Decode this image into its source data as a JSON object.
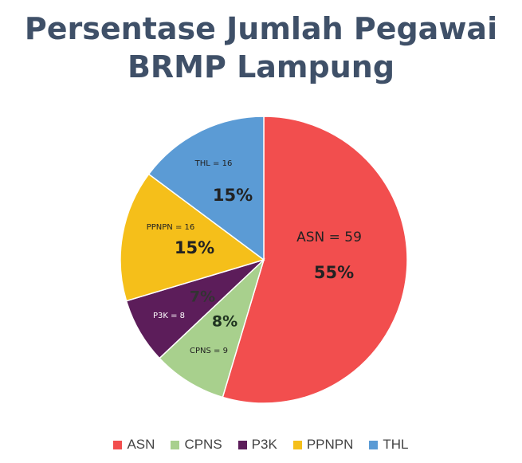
{
  "chart_data": {
    "type": "pie",
    "title": [
      "Persentase Jumlah Pegawai",
      "BRMP Lampung"
    ],
    "slices": [
      {
        "name": "ASN",
        "value": 59,
        "label": "ASN = 59",
        "percent": "55%",
        "color": "#f24e4e"
      },
      {
        "name": "CPNS",
        "value": 9,
        "label": "CPNS = 9",
        "percent": "8%",
        "color": "#a8d08d"
      },
      {
        "name": "P3K",
        "value": 8,
        "label": "P3K = 8",
        "percent": "7%",
        "color": "#5c1d5a"
      },
      {
        "name": "PPNPN",
        "value": 16,
        "label": "PPNPN = 16",
        "percent": "15%",
        "color": "#f5bf1a"
      },
      {
        "name": "THL",
        "value": 16,
        "label": "THL = 16",
        "percent": "15%",
        "color": "#5b9bd5"
      }
    ],
    "start": "12 o'clock",
    "direction": "clockwise",
    "legend_position": "bottom"
  }
}
